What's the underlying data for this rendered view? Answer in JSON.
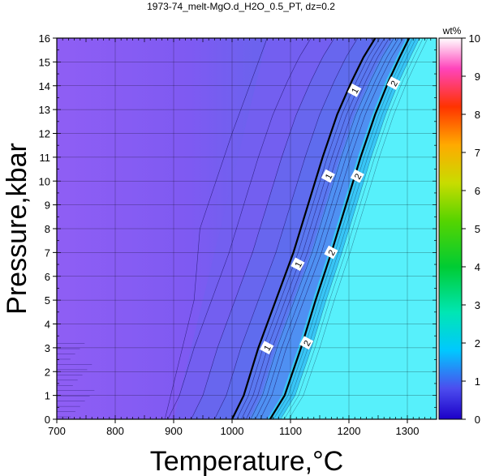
{
  "chart_data": {
    "type": "heatmap",
    "title": "1973-74_melt-MgO.d_H2O_0.5_PT, dz=0.2",
    "xlabel": "Temperature,°C",
    "ylabel": "Pressure,kbar",
    "xlim": [
      700,
      1350
    ],
    "ylim": [
      0,
      16
    ],
    "x_ticks": [
      700,
      800,
      900,
      1000,
      1100,
      1200,
      1300
    ],
    "y_ticks": [
      0,
      1,
      2,
      3,
      4,
      5,
      6,
      7,
      8,
      9,
      10,
      11,
      12,
      13,
      14,
      15,
      16
    ],
    "grid": true,
    "colorbar": {
      "label": "wt%",
      "range": [
        0,
        10
      ],
      "ticks": [
        0,
        1,
        2,
        3,
        4,
        5,
        6,
        7,
        8,
        9,
        10
      ],
      "colors": [
        "#1a00cc",
        "#4444ee",
        "#00c8ff",
        "#00e8a0",
        "#00cc33",
        "#77dd00",
        "#dddd00",
        "#ff9900",
        "#ff3300",
        "#ff55cc",
        "#ffffff"
      ]
    },
    "contour_levels": [
      {
        "level": 1,
        "label": "1",
        "points": [
          [
            1000,
            0
          ],
          [
            1020,
            1
          ],
          [
            1045,
            3
          ],
          [
            1075,
            5
          ],
          [
            1105,
            7
          ],
          [
            1130,
            9
          ],
          [
            1155,
            11
          ],
          [
            1180,
            12.8
          ],
          [
            1205,
            14.2
          ],
          [
            1225,
            15.2
          ],
          [
            1245,
            16
          ]
        ],
        "label_positions": [
          [
            1060,
            3
          ],
          [
            1113,
            6.5
          ],
          [
            1165,
            10.2
          ],
          [
            1210,
            13.8
          ]
        ]
      },
      {
        "level": 2,
        "label": "2",
        "points": [
          [
            1065,
            0
          ],
          [
            1090,
            1
          ],
          [
            1118,
            3
          ],
          [
            1143,
            5
          ],
          [
            1170,
            7
          ],
          [
            1195,
            9
          ],
          [
            1220,
            11
          ],
          [
            1245,
            12.8
          ],
          [
            1268,
            14.2
          ],
          [
            1287,
            15.2
          ],
          [
            1303,
            16
          ]
        ],
        "label_positions": [
          [
            1128,
            3.2
          ],
          [
            1170,
            7
          ],
          [
            1215,
            10.2
          ],
          [
            1277,
            14.1
          ]
        ]
      }
    ]
  }
}
